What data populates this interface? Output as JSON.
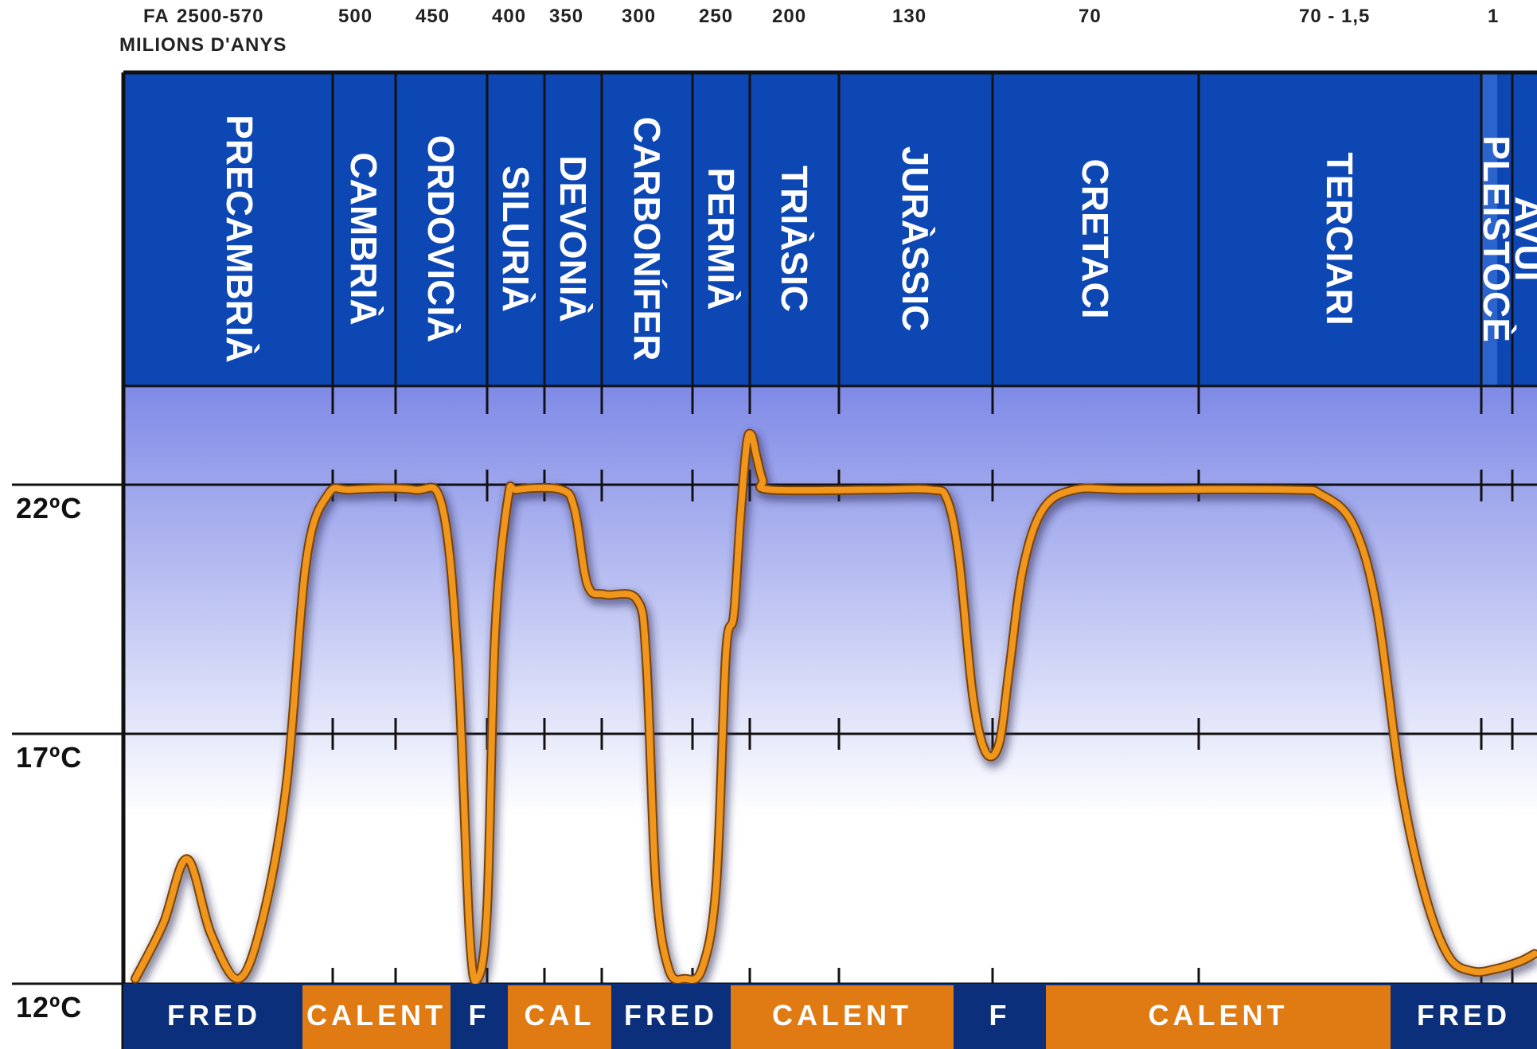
{
  "header": {
    "prefix": "FA",
    "unit": "MILIONS D'ANYS"
  },
  "age_labels": [
    "2500-570",
    "500",
    "450",
    "400",
    "350",
    "300",
    "250",
    "200",
    "130",
    "70",
    "70 - 1,5",
    "1"
  ],
  "periods": [
    "PRECAMBRIÀ",
    "CAMBRIÀ",
    "ORDOVICIÀ",
    "SILURIÀ",
    "DEVONIÀ",
    "CARBONÍFER",
    "PERMIÀ",
    "TRIÀSIC",
    "JURÀSSIC",
    "CRETACI",
    "TERCIARI",
    "PLEISTOCÈ",
    "AVUI"
  ],
  "climate_bands": [
    {
      "label": "FRED",
      "type": "cold"
    },
    {
      "label": "CALENT",
      "type": "warm"
    },
    {
      "label": "F",
      "type": "cold"
    },
    {
      "label": "CAL",
      "type": "warm"
    },
    {
      "label": "FRED",
      "type": "cold"
    },
    {
      "label": "CALENT",
      "type": "warm"
    },
    {
      "label": "F",
      "type": "cold"
    },
    {
      "label": "CALENT",
      "type": "warm"
    },
    {
      "label": "FRED",
      "type": "cold"
    }
  ],
  "colors": {
    "header_blue": "#0d47b4",
    "cold_band": "#0b2f7a",
    "warm_band": "#e07a12",
    "curve": "#f0961c",
    "plot_top": "#7f8ae6",
    "plot_bottom": "#ffffff"
  },
  "chart_data": {
    "type": "line",
    "title": "",
    "xlabel": "MILIONS D'ANYS",
    "ylabel": "",
    "y_ticks": [
      "12ºC",
      "17ºC",
      "22ºC"
    ],
    "ylim": [
      12,
      22
    ],
    "series": [
      {
        "values": [
          {
            "period": "PRECAMBRIÀ",
            "temp_start": 12,
            "temp_peak": 14.5,
            "temp_end": 22
          },
          {
            "period": "CAMBRIÀ",
            "temp": 22
          },
          {
            "period": "ORDOVICIÀ",
            "temp": 22
          },
          {
            "period": "SILURIÀ",
            "temp_min": 12
          },
          {
            "period": "DEVONIÀ",
            "temp_start": 22,
            "temp_end": 19.8
          },
          {
            "period": "CARBONÍFER",
            "temp_min": 12
          },
          {
            "period": "PERMIÀ",
            "temp_end": 19.5
          },
          {
            "period": "TRIÀSIC",
            "temp_peak": 23,
            "temp": 22
          },
          {
            "period": "JURÀSSIC",
            "temp": 22
          },
          {
            "period": "CRETACI",
            "temp_min": 16.6,
            "temp_end": 22
          },
          {
            "period": "TERCIARI",
            "temp_start": 22,
            "temp_end": 12.4
          },
          {
            "period": "PLEISTOCÈ",
            "temp": 12.2
          },
          {
            "period": "AVUI",
            "temp": 12.6
          }
        ]
      }
    ]
  }
}
